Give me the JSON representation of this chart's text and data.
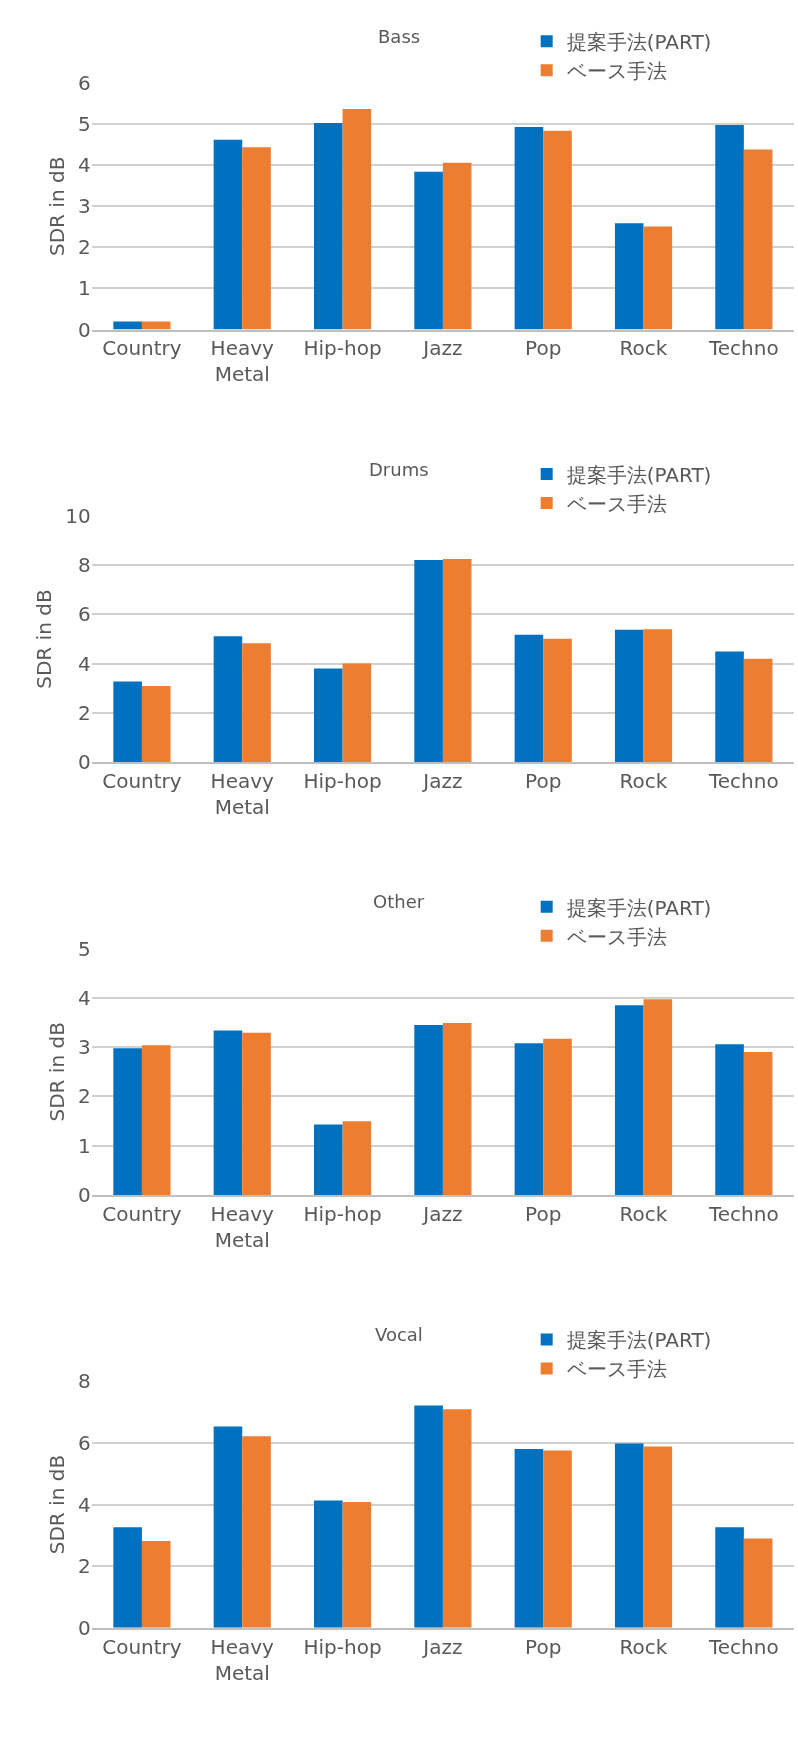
{
  "chart_data": [
    {
      "type": "bar",
      "title": "Bass",
      "ylabel": "SDR in dB",
      "categories": [
        "Country",
        "Heavy Metal",
        "Hip-hop",
        "Jazz",
        "Pop",
        "Rock",
        "Techno"
      ],
      "series": [
        {
          "name": "提案手法(PART)",
          "color": "#0070c0",
          "values": [
            0.2,
            4.62,
            5.03,
            3.84,
            4.93,
            2.59,
            4.98
          ]
        },
        {
          "name": "ベース手法",
          "color": "#ed7d31",
          "values": [
            0.2,
            4.44,
            5.37,
            4.06,
            4.84,
            2.51,
            4.38
          ]
        }
      ],
      "ylim": [
        0,
        6
      ],
      "yticks": [
        0,
        1,
        2,
        3,
        4,
        5,
        6
      ],
      "grid": "y",
      "legend": "top right"
    },
    {
      "type": "bar",
      "title": "Drums",
      "ylabel": "SDR in dB",
      "categories": [
        "Country",
        "Heavy Metal",
        "Hip-hop",
        "Jazz",
        "Pop",
        "Rock",
        "Techno"
      ],
      "series": [
        {
          "name": "提案手法(PART)",
          "color": "#0070c0",
          "values": [
            3.28,
            5.11,
            3.81,
            8.21,
            5.17,
            5.38,
            4.5
          ]
        },
        {
          "name": "ベース手法",
          "color": "#ed7d31",
          "values": [
            3.1,
            4.83,
            4.01,
            8.25,
            5.01,
            5.4,
            4.2
          ]
        }
      ],
      "ylim": [
        0,
        10
      ],
      "yticks": [
        0,
        2,
        4,
        6,
        8,
        10
      ],
      "grid": "y",
      "legend": "top right"
    },
    {
      "type": "bar",
      "title": "Other",
      "ylabel": "SDR in dB",
      "categories": [
        "Country",
        "Heavy Metal",
        "Hip-hop",
        "Jazz",
        "Pop",
        "Rock",
        "Techno"
      ],
      "series": [
        {
          "name": "提案手法(PART)",
          "color": "#0070c0",
          "values": [
            2.98,
            3.34,
            1.43,
            3.45,
            3.08,
            3.85,
            3.06
          ]
        },
        {
          "name": "ベース手法",
          "color": "#ed7d31",
          "values": [
            3.04,
            3.29,
            1.5,
            3.49,
            3.17,
            3.97,
            2.9
          ]
        }
      ],
      "ylim": [
        0,
        5
      ],
      "yticks": [
        0,
        1,
        2,
        3,
        4,
        5
      ],
      "grid": "y",
      "legend": "top right"
    },
    {
      "type": "bar",
      "title": "Vocal",
      "ylabel": "SDR in dB",
      "categories": [
        "Country",
        "Heavy Metal",
        "Hip-hop",
        "Jazz",
        "Pop",
        "Rock",
        "Techno"
      ],
      "series": [
        {
          "name": "提案手法(PART)",
          "color": "#0070c0",
          "values": [
            3.26,
            6.53,
            4.13,
            7.21,
            5.8,
            5.98,
            3.26
          ]
        },
        {
          "name": "ベース手法",
          "color": "#ed7d31",
          "values": [
            2.82,
            6.22,
            4.08,
            7.09,
            5.75,
            5.88,
            2.9
          ]
        }
      ],
      "ylim": [
        0,
        8
      ],
      "yticks": [
        0,
        2,
        4,
        6,
        8
      ],
      "grid": "y",
      "legend": "top right"
    }
  ]
}
